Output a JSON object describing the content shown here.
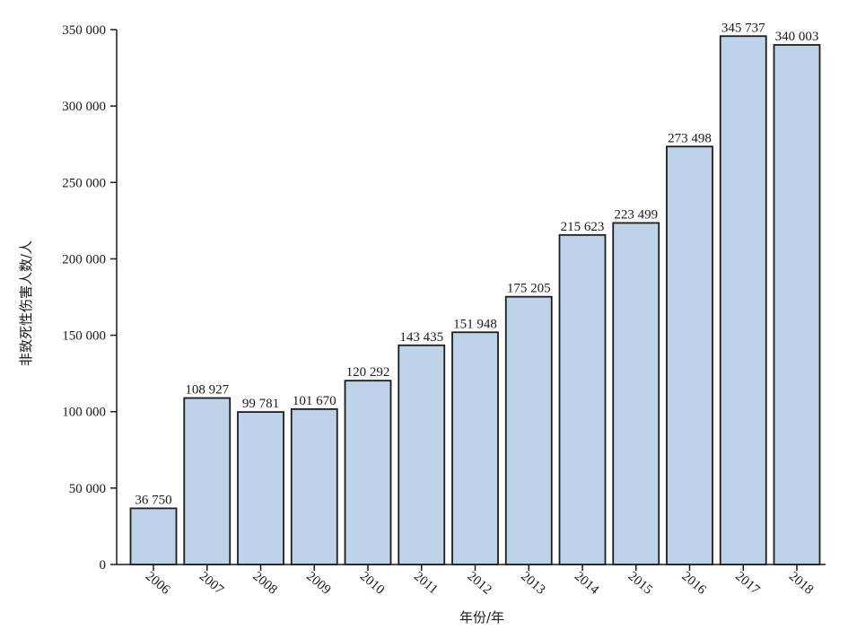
{
  "chart_data": {
    "type": "bar",
    "title": "",
    "xlabel": "年份/年",
    "ylabel": "非致死性伤害人数/人",
    "categories": [
      "2006",
      "2007",
      "2008",
      "2009",
      "2010",
      "2011",
      "2012",
      "2013",
      "2014",
      "2015",
      "2016",
      "2017",
      "2018"
    ],
    "values": [
      36750,
      108927,
      99781,
      101670,
      120292,
      143435,
      151948,
      175205,
      215623,
      223499,
      273498,
      345737,
      340003
    ],
    "value_labels": [
      "36 750",
      "108 927",
      "99 781",
      "101 670",
      "120 292",
      "143 435",
      "151 948",
      "175 205",
      "215 623",
      "223 499",
      "273 498",
      "345 737",
      "340 003"
    ],
    "ylim": [
      0,
      350000
    ],
    "yticks": [
      0,
      50000,
      100000,
      150000,
      200000,
      250000,
      300000,
      350000
    ],
    "ytick_labels": [
      "0",
      "50 000",
      "100 000",
      "150 000",
      "200 000",
      "250 000",
      "300 000",
      "350 000"
    ],
    "grid": false,
    "legend": "none",
    "colors": {
      "bar_fill": "#bed2ea",
      "bar_stroke": "#1c1c1c",
      "axis": "#1c1c1c"
    }
  }
}
